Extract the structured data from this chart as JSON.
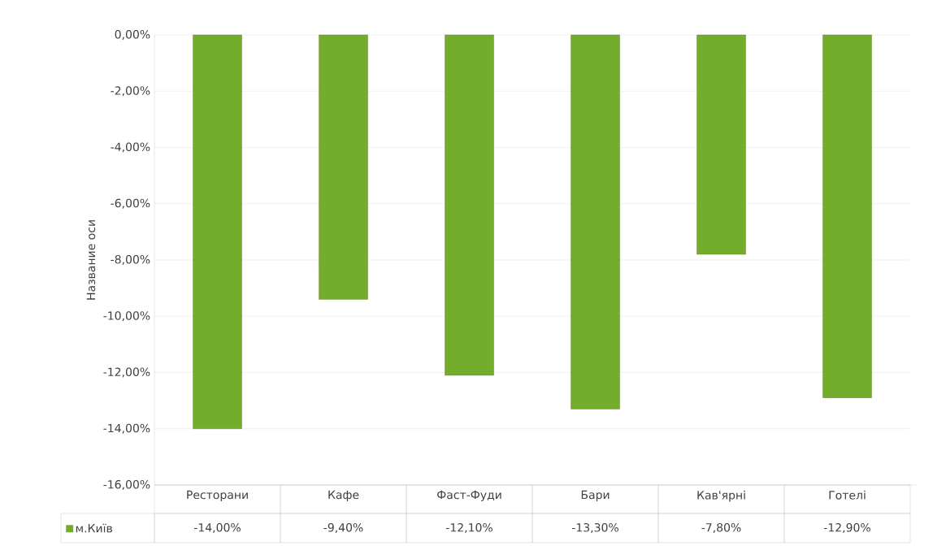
{
  "chart_data": {
    "type": "bar",
    "ylabel": "Название оси",
    "categories": [
      "Ресторани",
      "Кафе",
      "Фаст-Фуди",
      "Бари",
      "Кав'ярні",
      "Готелі"
    ],
    "series": [
      {
        "name": "м.Київ",
        "color": "#73ad2b",
        "values": [
          -14.0,
          -9.4,
          -12.1,
          -13.3,
          -7.8,
          -12.9
        ],
        "value_labels": [
          "-14,00%",
          "-9,40%",
          "-12,10%",
          "-13,30%",
          "-7,80%",
          "-12,90%"
        ]
      }
    ],
    "ylim": [
      -16,
      0
    ],
    "yticks": [
      {
        "value": 0,
        "label": "0,00%"
      },
      {
        "value": -2,
        "label": "-2,00%"
      },
      {
        "value": -4,
        "label": "-4,00%"
      },
      {
        "value": -6,
        "label": "-6,00%"
      },
      {
        "value": -8,
        "label": "-8,00%"
      },
      {
        "value": -10,
        "label": "-10,00%"
      },
      {
        "value": -12,
        "label": "-12,00%"
      },
      {
        "value": -14,
        "label": "-14,00%"
      },
      {
        "value": -16,
        "label": "-16,00%"
      }
    ],
    "grid": "y",
    "legend": "bottom"
  }
}
